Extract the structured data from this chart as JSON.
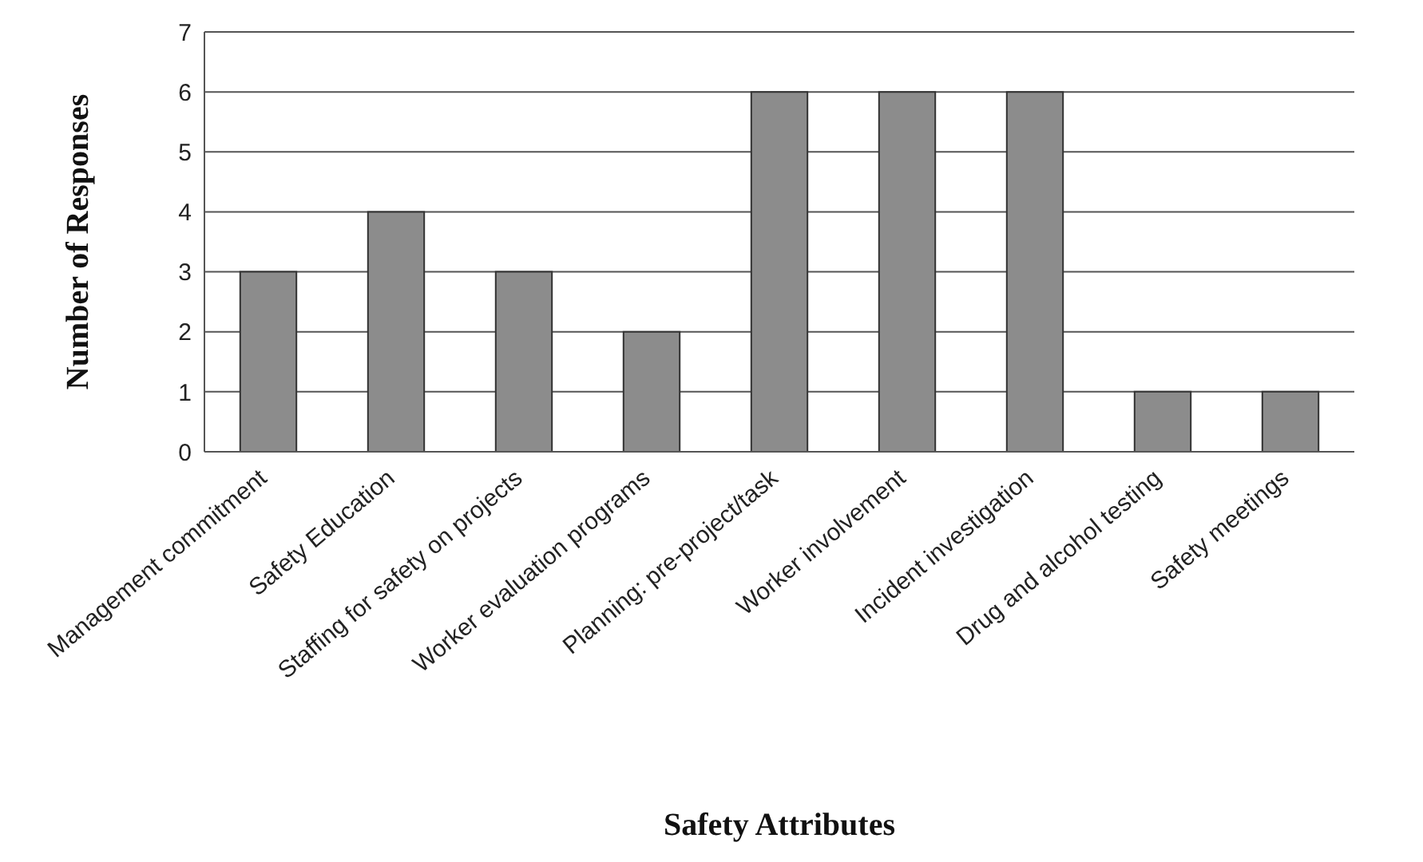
{
  "chart_data": {
    "type": "bar",
    "xlabel": "Safety Attributes",
    "ylabel": "Number of Responses",
    "categories": [
      "Management commitment",
      "Safety Education",
      "Staffing for safety on projects",
      "Worker evaluation programs",
      "Planning: pre-project/task",
      "Worker involvement",
      "Incident investigation",
      "Drug and alcohol testing",
      "Safety meetings"
    ],
    "values": [
      3,
      4,
      3,
      2,
      6,
      6,
      6,
      1,
      1
    ],
    "color": "#8c8c8c",
    "ylim": [
      0,
      7
    ],
    "yticks": [
      0,
      1,
      2,
      3,
      4,
      5,
      6,
      7
    ],
    "grid": "y",
    "legend": false
  }
}
